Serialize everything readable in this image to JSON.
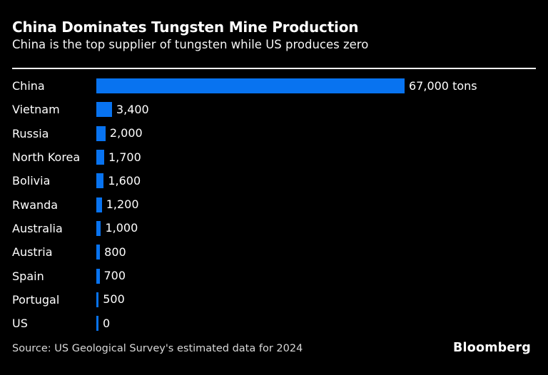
{
  "header": {
    "title": "China Dominates Tungsten Mine Production",
    "subtitle": "China is the top supplier of tungsten while US produces zero"
  },
  "chart_data": {
    "type": "bar",
    "orientation": "horizontal",
    "title": "China Dominates Tungsten Mine Production",
    "subtitle": "China is the top supplier of tungsten while US produces zero",
    "categories": [
      "China",
      "Vietnam",
      "Russia",
      "North Korea",
      "Bolivia",
      "Rwanda",
      "Australia",
      "Austria",
      "Spain",
      "Portugal",
      "US"
    ],
    "values": [
      67000,
      3400,
      2000,
      1700,
      1600,
      1200,
      1000,
      800,
      700,
      500,
      0
    ],
    "value_labels": [
      "67,000 tons",
      "3,400",
      "2,000",
      "1,700",
      "1,600",
      "1,200",
      "1,000",
      "800",
      "700",
      "500",
      "0"
    ],
    "unit": "tons",
    "xlim": [
      0,
      67000
    ],
    "xlabel": "",
    "ylabel": "",
    "grid": false,
    "legend_position": "none",
    "bar_color": "#0873F0",
    "background_color": "#000000",
    "text_color": "#ffffff"
  },
  "footer": {
    "source": "Source: US Geological Survey's estimated data for 2024",
    "brand": "Bloomberg"
  }
}
